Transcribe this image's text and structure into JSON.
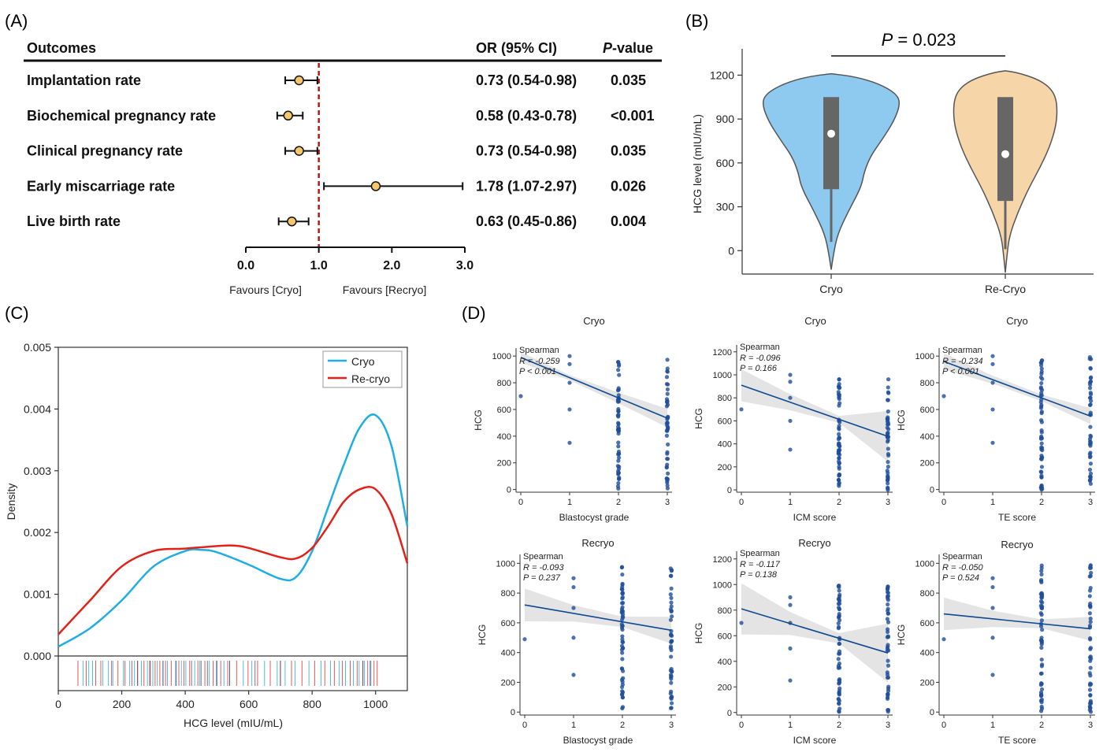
{
  "colors": {
    "cryo": "#1eaee3",
    "recryo": "#e32119",
    "violin_cryo": "#8ec9ef",
    "violin_recryo": "#f6d6a9",
    "forest_point": "#f6c66d",
    "ref_line": "#c0191b",
    "scatter_point": "#1f4e9b",
    "reg_line": "#0d4a90",
    "ci_band": "#d9d9d9"
  },
  "panels": {
    "a": "(A)",
    "b": "(B)",
    "c": "(C)",
    "d": "(D)"
  },
  "chart_data": [
    {
      "id": "A",
      "type": "forest",
      "headers": {
        "outcomes": "Outcomes",
        "or": "OR (95% CI)",
        "p_prefix": "P",
        "p_suffix": "-value"
      },
      "rows": [
        {
          "label": "Implantation rate",
          "or": 0.73,
          "lo": 0.54,
          "hi": 0.98,
          "or_text": "0.73 (0.54-0.98)",
          "p": "0.035"
        },
        {
          "label": "Biochemical pregnancy rate",
          "or": 0.58,
          "lo": 0.43,
          "hi": 0.78,
          "or_text": "0.58 (0.43-0.78)",
          "p": "<0.001"
        },
        {
          "label": "Clinical pregnancy rate",
          "or": 0.73,
          "lo": 0.54,
          "hi": 0.98,
          "or_text": "0.73 (0.54-0.98)",
          "p": "0.035"
        },
        {
          "label": "Early miscarriage rate",
          "or": 1.78,
          "lo": 1.07,
          "hi": 2.97,
          "or_text": "1.78 (1.07-2.97)",
          "p": "0.026"
        },
        {
          "label": "Live birth rate",
          "or": 0.63,
          "lo": 0.45,
          "hi": 0.86,
          "or_text": "0.63 (0.45-0.86)",
          "p": "0.004"
        }
      ],
      "xlim": [
        0,
        3
      ],
      "xticks": [
        "0.0",
        "1.0",
        "2.0",
        "3.0"
      ],
      "reference": 1.0,
      "favours_left": "Favours [Cryo]",
      "favours_right": "Favours [Recryo]"
    },
    {
      "id": "B",
      "type": "violin",
      "ylabel": "HCG level (mIU/mL)",
      "ylim": [
        -160,
        1380
      ],
      "yticks": [
        0,
        300,
        600,
        900,
        1200
      ],
      "p_prefix": "P",
      "p_value": " = 0.023",
      "groups": [
        {
          "name": "Cryo",
          "median": 800,
          "q1": 420,
          "q3": 1050,
          "whisker_low": 60,
          "min": -130,
          "max": 1210
        },
        {
          "name": "Re-Cryo",
          "median": 660,
          "q1": 340,
          "q3": 1050,
          "whisker_low": 10,
          "min": -150,
          "max": 1230
        }
      ]
    },
    {
      "id": "C",
      "type": "density",
      "xlabel": "HCG level (mIU/mL)",
      "ylabel": "Density",
      "xlim": [
        0,
        1100
      ],
      "ylim": [
        0,
        0.005
      ],
      "xticks": [
        0,
        200,
        400,
        600,
        800,
        1000
      ],
      "yticks": [
        "0.000",
        "0.001",
        "0.002",
        "0.003",
        "0.004",
        "0.005"
      ],
      "legend": [
        "Cryo",
        "Re-cryo"
      ],
      "series": [
        {
          "name": "Cryo",
          "x": [
            0,
            100,
            200,
            300,
            400,
            450,
            500,
            600,
            700,
            750,
            800,
            850,
            900,
            950,
            1000,
            1050,
            1100
          ],
          "y": [
            0.00015,
            0.00045,
            0.0009,
            0.00145,
            0.0017,
            0.00172,
            0.00168,
            0.00148,
            0.00125,
            0.00128,
            0.0017,
            0.0024,
            0.0031,
            0.0037,
            0.0039,
            0.0034,
            0.0021
          ]
        },
        {
          "name": "Re-cryo",
          "x": [
            0,
            100,
            200,
            300,
            400,
            500,
            550,
            600,
            700,
            750,
            800,
            850,
            900,
            950,
            1000,
            1050,
            1100
          ],
          "y": [
            0.00035,
            0.0009,
            0.00145,
            0.0017,
            0.00174,
            0.00178,
            0.00179,
            0.00175,
            0.0016,
            0.00158,
            0.00175,
            0.0021,
            0.0025,
            0.0027,
            0.0027,
            0.0023,
            0.0015
          ]
        }
      ],
      "rug": {
        "cryo": [
          78,
          96,
          108,
          140,
          158,
          172,
          205,
          225,
          240,
          262,
          281,
          298,
          312,
          330,
          344,
          372,
          388,
          402,
          430,
          446,
          476,
          498,
          522,
          540,
          583,
          610,
          650,
          690,
          715,
          746,
          790,
          828,
          858,
          885,
          905,
          930,
          948,
          965,
          982
        ],
        "recryo": [
          62,
          88,
          118,
          134,
          168,
          188,
          210,
          232,
          250,
          270,
          288,
          305,
          320,
          338,
          356,
          380,
          396,
          414,
          440,
          462,
          488,
          512,
          534,
          562,
          598,
          628,
          668,
          700,
          735,
          768,
          808,
          840,
          870,
          895,
          920,
          942,
          960,
          975,
          995,
          1005
        ]
      }
    },
    {
      "id": "D",
      "type": "scatter-grid",
      "plots": [
        {
          "title": "Cryo",
          "xlabel": "Blastocyst grade",
          "ylabel": "HCG",
          "method": "Spearman",
          "r": "R = -0.259",
          "p": "P < 0.001",
          "ylim": [
            -20,
            1060
          ],
          "yticks": [
            0,
            200,
            400,
            600,
            800,
            1000
          ],
          "xticks": [
            0,
            1,
            2,
            3
          ],
          "line": [
            [
              0,
              990
            ],
            [
              3,
              535
            ]
          ],
          "band_width": [
            40,
            20,
            40,
            70
          ]
        },
        {
          "title": "Cryo",
          "xlabel": "ICM score",
          "ylabel": "HCG",
          "method": "Spearman",
          "r": "R = -0.096",
          "p": "P = 0.166",
          "ylim": [
            -20,
            1260
          ],
          "yticks": [
            0,
            200,
            400,
            600,
            800,
            1000,
            1200
          ],
          "xticks": [
            0,
            1,
            2,
            3
          ],
          "line": [
            [
              0,
              910
            ],
            [
              3,
              465
            ]
          ],
          "band_width": [
            140,
            70,
            30,
            220
          ]
        },
        {
          "title": "Cryo",
          "xlabel": "TE score",
          "ylabel": "HCG",
          "method": "Spearman",
          "r": "R = -0.234",
          "p": "P < 0.001",
          "ylim": [
            -20,
            1060
          ],
          "yticks": [
            0,
            200,
            400,
            600,
            800,
            1000
          ],
          "xticks": [
            0,
            1,
            2,
            3
          ],
          "line": [
            [
              0,
              960
            ],
            [
              3,
              550
            ]
          ],
          "band_width": [
            60,
            30,
            25,
            60
          ]
        },
        {
          "title": "Recryo",
          "xlabel": "Blastocyst grade",
          "ylabel": "HCG",
          "method": "Spearman",
          "r": "R = -0.093",
          "p": "P = 0.237",
          "ylim": [
            -20,
            1060
          ],
          "yticks": [
            0,
            200,
            400,
            600,
            800,
            1000
          ],
          "xticks": [
            0,
            1,
            2,
            3
          ],
          "line": [
            [
              0,
              720
            ],
            [
              3,
              550
            ]
          ],
          "band_width": [
            110,
            55,
            35,
            90
          ]
        },
        {
          "title": "Recryo",
          "xlabel": "ICM score",
          "ylabel": "HCG",
          "method": "Spearman",
          "r": "R = -0.117",
          "p": "P = 0.138",
          "ylim": [
            -20,
            1260
          ],
          "yticks": [
            0,
            200,
            400,
            600,
            800,
            1000,
            1200
          ],
          "xticks": [
            0,
            1,
            2,
            3
          ],
          "line": [
            [
              0,
              810
            ],
            [
              3,
              465
            ]
          ],
          "band_width": [
            200,
            90,
            40,
            230
          ]
        },
        {
          "title": "Recryo",
          "xlabel": "TE score",
          "ylabel": "HCG",
          "method": "Spearman",
          "r": "R = -0.050",
          "p": "P = 0.524",
          "ylim": [
            -20,
            1060
          ],
          "yticks": [
            0,
            200,
            400,
            600,
            800,
            1000
          ],
          "xticks": [
            0,
            1,
            2,
            3
          ],
          "line": [
            [
              0,
              660
            ],
            [
              3,
              560
            ]
          ],
          "band_width": [
            110,
            55,
            30,
            80
          ]
        }
      ]
    }
  ]
}
